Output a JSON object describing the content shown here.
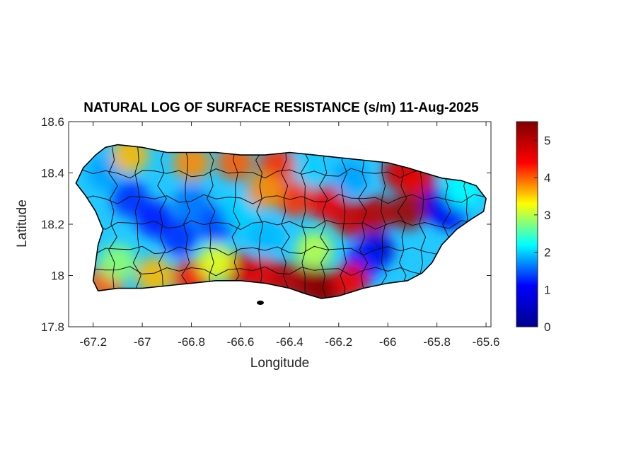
{
  "title": "NATURAL LOG OF SURFACE RESISTANCE (s/m) 11-Aug-2025",
  "xlabel": "Longitude",
  "ylabel": "Latitude",
  "chart_data": {
    "type": "heatmap",
    "title": "NATURAL LOG OF SURFACE RESISTANCE (s/m) 11-Aug-2025",
    "xlabel": "Longitude",
    "ylabel": "Latitude",
    "xlim": [
      -67.3,
      -65.58
    ],
    "ylim": [
      17.8,
      18.6
    ],
    "x_ticks": [
      -67.2,
      -67,
      -66.8,
      -66.6,
      -66.4,
      -66.2,
      -66,
      -65.8,
      -65.6
    ],
    "x_tick_labels": [
      "-67.2",
      "-67",
      "-66.8",
      "-66.6",
      "-66.4",
      "-66.2",
      "-66",
      "-65.8",
      "-65.6"
    ],
    "y_ticks": [
      17.8,
      18,
      18.2,
      18.4,
      18.6
    ],
    "y_tick_labels": [
      "17.8",
      "18",
      "18.2",
      "18.4",
      "18.6"
    ],
    "colorbar": {
      "colormap": "jet",
      "range": [
        0,
        5.5
      ],
      "ticks": [
        0,
        1,
        2,
        3,
        4,
        5
      ],
      "tick_labels": [
        "0",
        "1",
        "2",
        "3",
        "4",
        "5"
      ],
      "colors": [
        "#00008f",
        "#0000ff",
        "#00ffff",
        "#ffff00",
        "#ff0000",
        "#800000"
      ]
    },
    "grid": false,
    "island_outline": [
      [
        -67.27,
        18.36
      ],
      [
        -67.24,
        18.42
      ],
      [
        -67.19,
        18.47
      ],
      [
        -67.15,
        18.5
      ],
      [
        -67.1,
        18.51
      ],
      [
        -67.0,
        18.5
      ],
      [
        -66.9,
        18.48
      ],
      [
        -66.8,
        18.48
      ],
      [
        -66.7,
        18.48
      ],
      [
        -66.6,
        18.47
      ],
      [
        -66.5,
        18.47
      ],
      [
        -66.4,
        18.48
      ],
      [
        -66.3,
        18.47
      ],
      [
        -66.2,
        18.46
      ],
      [
        -66.1,
        18.45
      ],
      [
        -66.0,
        18.44
      ],
      [
        -65.92,
        18.42
      ],
      [
        -65.85,
        18.4
      ],
      [
        -65.78,
        18.38
      ],
      [
        -65.7,
        18.37
      ],
      [
        -65.64,
        18.35
      ],
      [
        -65.6,
        18.3
      ],
      [
        -65.61,
        18.25
      ],
      [
        -65.66,
        18.22
      ],
      [
        -65.72,
        18.18
      ],
      [
        -65.78,
        18.12
      ],
      [
        -65.82,
        18.05
      ],
      [
        -65.86,
        18.01
      ],
      [
        -65.92,
        17.98
      ],
      [
        -66.0,
        17.97
      ],
      [
        -66.1,
        17.95
      ],
      [
        -66.2,
        17.92
      ],
      [
        -66.27,
        17.91
      ],
      [
        -66.34,
        17.93
      ],
      [
        -66.4,
        17.95
      ],
      [
        -66.5,
        17.97
      ],
      [
        -66.6,
        17.98
      ],
      [
        -66.7,
        17.98
      ],
      [
        -66.8,
        17.97
      ],
      [
        -66.9,
        17.96
      ],
      [
        -67.0,
        17.95
      ],
      [
        -67.1,
        17.95
      ],
      [
        -67.18,
        17.94
      ],
      [
        -67.2,
        17.98
      ],
      [
        -67.19,
        18.05
      ],
      [
        -67.18,
        18.12
      ],
      [
        -67.16,
        18.18
      ],
      [
        -67.19,
        18.25
      ],
      [
        -67.23,
        18.31
      ],
      [
        -67.27,
        18.36
      ]
    ],
    "value_hotspots": [
      {
        "lon": -67.05,
        "lat": 18.3,
        "value": 1.3
      },
      {
        "lon": -66.95,
        "lat": 18.22,
        "value": 1.2
      },
      {
        "lon": -66.8,
        "lat": 18.28,
        "value": 1.6
      },
      {
        "lon": -66.7,
        "lat": 18.2,
        "value": 1.4
      },
      {
        "lon": -66.85,
        "lat": 18.15,
        "value": 1.3
      },
      {
        "lon": -67.15,
        "lat": 18.4,
        "value": 1.8
      },
      {
        "lon": -66.6,
        "lat": 18.25,
        "value": 2.0
      },
      {
        "lon": -66.5,
        "lat": 18.15,
        "value": 1.9
      },
      {
        "lon": -65.8,
        "lat": 18.28,
        "value": 0.7
      },
      {
        "lon": -65.75,
        "lat": 18.25,
        "value": 1.0
      },
      {
        "lon": -66.05,
        "lat": 18.1,
        "value": 0.6
      },
      {
        "lon": -66.1,
        "lat": 18.05,
        "value": 1.2
      },
      {
        "lon": -66.15,
        "lat": 18.38,
        "value": 1.8
      },
      {
        "lon": -66.35,
        "lat": 18.4,
        "value": 2.0
      },
      {
        "lon": -66.8,
        "lat": 18.44,
        "value": 3.8
      },
      {
        "lon": -66.62,
        "lat": 18.44,
        "value": 4.0
      },
      {
        "lon": -66.45,
        "lat": 18.43,
        "value": 4.2
      },
      {
        "lon": -67.05,
        "lat": 18.47,
        "value": 3.6
      },
      {
        "lon": -66.38,
        "lat": 18.3,
        "value": 4.2
      },
      {
        "lon": -66.25,
        "lat": 18.28,
        "value": 4.5
      },
      {
        "lon": -66.15,
        "lat": 18.22,
        "value": 4.8
      },
      {
        "lon": -66.05,
        "lat": 18.24,
        "value": 5.0
      },
      {
        "lon": -65.92,
        "lat": 18.25,
        "value": 5.2
      },
      {
        "lon": -65.95,
        "lat": 18.4,
        "value": 4.8
      },
      {
        "lon": -65.88,
        "lat": 18.38,
        "value": 4.6
      },
      {
        "lon": -66.5,
        "lat": 18.33,
        "value": 3.8
      },
      {
        "lon": -66.6,
        "lat": 18.02,
        "value": 4.8
      },
      {
        "lon": -66.5,
        "lat": 18.0,
        "value": 4.6
      },
      {
        "lon": -66.4,
        "lat": 17.98,
        "value": 5.0
      },
      {
        "lon": -66.3,
        "lat": 17.96,
        "value": 5.3
      },
      {
        "lon": -66.25,
        "lat": 17.94,
        "value": 5.4
      },
      {
        "lon": -66.15,
        "lat": 17.98,
        "value": 4.5
      },
      {
        "lon": -66.8,
        "lat": 17.99,
        "value": 4.3
      },
      {
        "lon": -66.95,
        "lat": 18.0,
        "value": 3.6
      },
      {
        "lon": -67.15,
        "lat": 17.97,
        "value": 4.0
      },
      {
        "lon": -67.1,
        "lat": 18.05,
        "value": 2.8
      },
      {
        "lon": -66.7,
        "lat": 18.05,
        "value": 3.2
      },
      {
        "lon": -66.3,
        "lat": 18.1,
        "value": 3.0
      },
      {
        "lon": -65.7,
        "lat": 18.33,
        "value": 2.2
      }
    ]
  }
}
